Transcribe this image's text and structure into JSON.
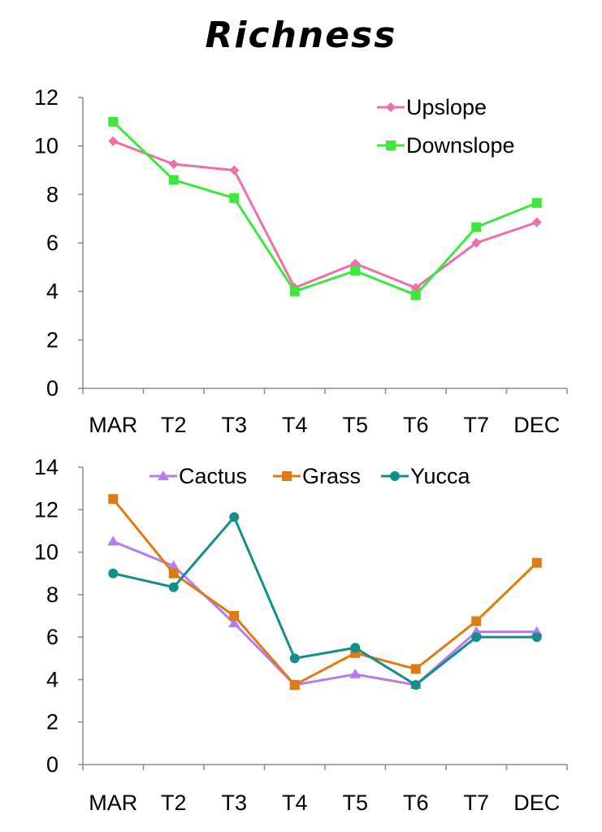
{
  "page": {
    "title": "Richness"
  },
  "chart_data": [
    {
      "type": "line",
      "categories": [
        "MAR",
        "T2",
        "T3",
        "T4",
        "T5",
        "T6",
        "T7",
        "DEC"
      ],
      "ylim": [
        0,
        12
      ],
      "yticks": [
        0,
        2,
        4,
        6,
        8,
        10,
        12
      ],
      "grid": false,
      "legend": "top-right",
      "series": [
        {
          "name": "Upslope",
          "values": [
            10.2,
            9.25,
            9.0,
            4.15,
            5.15,
            4.15,
            6.0,
            6.85
          ],
          "color": "#f06eaa",
          "marker": "diamond"
        },
        {
          "name": "Downslope",
          "values": [
            11.0,
            8.6,
            7.85,
            4.0,
            4.85,
            3.85,
            6.65,
            7.65
          ],
          "color": "#3de83d",
          "marker": "square"
        }
      ]
    },
    {
      "type": "line",
      "categories": [
        "MAR",
        "T2",
        "T3",
        "T4",
        "T5",
        "T6",
        "T7",
        "DEC"
      ],
      "ylim": [
        0,
        14
      ],
      "yticks": [
        0,
        2,
        4,
        6,
        8,
        10,
        12,
        14
      ],
      "grid": false,
      "legend": "top",
      "series": [
        {
          "name": "Cactus",
          "values": [
            10.5,
            9.35,
            6.65,
            3.75,
            4.25,
            3.75,
            6.25,
            6.25
          ],
          "color": "#b57cf0",
          "marker": "triangle"
        },
        {
          "name": "Grass",
          "values": [
            12.5,
            9.0,
            7.0,
            3.75,
            5.25,
            4.5,
            6.75,
            9.5
          ],
          "color": "#e07b12",
          "marker": "square"
        },
        {
          "name": "Yucca",
          "values": [
            9.0,
            8.35,
            11.65,
            5.0,
            5.5,
            3.75,
            6.0,
            6.0
          ],
          "color": "#138f8a",
          "marker": "circle"
        }
      ]
    }
  ]
}
